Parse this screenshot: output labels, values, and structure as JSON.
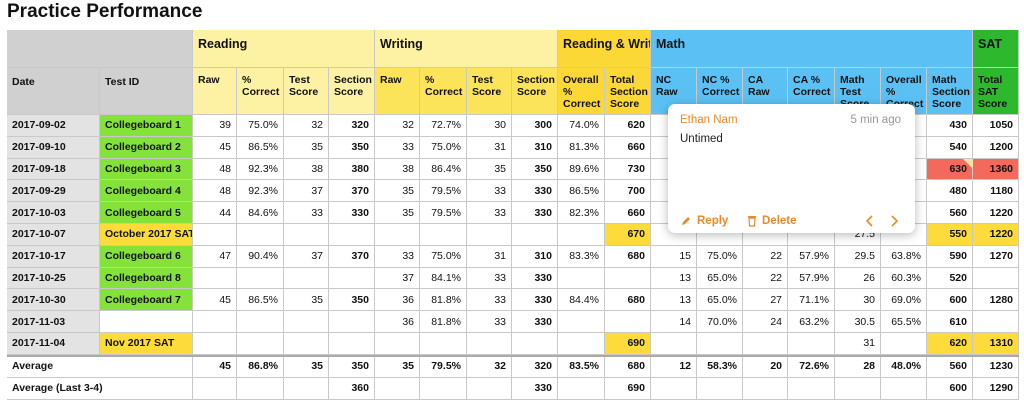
{
  "title": "Practice Performance",
  "groups": [
    "Reading",
    "Writing",
    "Reading & Writing",
    "Math",
    "SAT"
  ],
  "columns": [
    "Date",
    "Test ID",
    "Raw",
    "% Correct",
    "Test Score",
    "Section Score",
    "Raw",
    "% Correct",
    "Test Score",
    "Section Score",
    "Overall % Correct",
    "Total Section Score",
    "NC Raw",
    "NC % Correct",
    "CA Raw",
    "CA % Correct",
    "Math Test Score",
    "Overall % Correct",
    "Math Section Score",
    "Total SAT Score"
  ],
  "rows": [
    {
      "date": "2017-09-02",
      "test_id": "Collegeboard 1",
      "cells": [
        "39",
        "75.0%",
        "32",
        "320",
        "32",
        "72.7%",
        "30",
        "300",
        "74.0%",
        "620",
        null,
        null,
        null,
        null,
        null,
        null,
        "430",
        "1050"
      ]
    },
    {
      "date": "2017-09-10",
      "test_id": "Collegeboard 2",
      "cells": [
        "45",
        "86.5%",
        "35",
        "350",
        "33",
        "75.0%",
        "31",
        "310",
        "81.3%",
        "660",
        null,
        null,
        null,
        null,
        null,
        null,
        "540",
        "1200"
      ]
    },
    {
      "date": "2017-09-18",
      "test_id": "Collegeboard 3",
      "cells": [
        "48",
        "92.3%",
        "38",
        "380",
        "38",
        "86.4%",
        "35",
        "350",
        "89.6%",
        "730",
        null,
        null,
        null,
        null,
        null,
        null,
        "630",
        "1360"
      ]
    },
    {
      "date": "2017-09-29",
      "test_id": "Collegeboard 4",
      "cells": [
        "48",
        "92.3%",
        "37",
        "370",
        "35",
        "79.5%",
        "33",
        "330",
        "86.5%",
        "700",
        null,
        null,
        null,
        null,
        null,
        null,
        "480",
        "1180"
      ]
    },
    {
      "date": "2017-10-03",
      "test_id": "Collegeboard 5",
      "cells": [
        "44",
        "84.6%",
        "33",
        "330",
        "35",
        "79.5%",
        "33",
        "330",
        "82.3%",
        "660",
        null,
        null,
        null,
        null,
        null,
        null,
        "560",
        "1220"
      ]
    },
    {
      "date": "2017-10-07",
      "test_id": "October 2017 SAT",
      "cells": [
        null,
        null,
        null,
        null,
        null,
        null,
        null,
        null,
        null,
        "670",
        null,
        null,
        null,
        null,
        "27.5",
        null,
        "550",
        "1220"
      ]
    },
    {
      "date": "2017-10-17",
      "test_id": "Collegeboard 6",
      "cells": [
        "47",
        "90.4%",
        "37",
        "370",
        "33",
        "75.0%",
        "31",
        "310",
        "83.3%",
        "680",
        "15",
        "75.0%",
        "22",
        "57.9%",
        "29.5",
        "63.8%",
        "590",
        "1270"
      ]
    },
    {
      "date": "2017-10-25",
      "test_id": "Collegeboard 8",
      "cells": [
        null,
        null,
        null,
        null,
        "37",
        "84.1%",
        "33",
        "330",
        null,
        null,
        "13",
        "65.0%",
        "22",
        "57.9%",
        "26",
        "60.3%",
        "520",
        null
      ]
    },
    {
      "date": "2017-10-30",
      "test_id": "Collegeboard 7",
      "cells": [
        "45",
        "86.5%",
        "35",
        "350",
        "36",
        "81.8%",
        "33",
        "330",
        "84.4%",
        "680",
        "13",
        "65.0%",
        "27",
        "71.1%",
        "30",
        "69.0%",
        "600",
        "1280"
      ]
    },
    {
      "date": "2017-11-03",
      "test_id": null,
      "cells": [
        null,
        null,
        null,
        null,
        "36",
        "81.8%",
        "33",
        "330",
        null,
        null,
        "14",
        "70.0%",
        "24",
        "63.2%",
        "30.5",
        "65.5%",
        "610",
        null
      ]
    },
    {
      "date": "2017-11-04",
      "test_id": "Nov 2017 SAT",
      "cells": [
        null,
        null,
        null,
        null,
        null,
        null,
        null,
        null,
        null,
        "690",
        null,
        null,
        null,
        null,
        "31",
        null,
        "620",
        "1310"
      ]
    }
  ],
  "averages": [
    {
      "date": "Average",
      "cells": [
        "45",
        "86.8%",
        "35",
        "350",
        "35",
        "79.5%",
        "32",
        "320",
        "83.5%",
        "680",
        "12",
        "58.3%",
        "20",
        "72.6%",
        "28",
        "48.0%",
        "560",
        "1230"
      ]
    },
    {
      "date": "Average (Last 3-4)",
      "cells": [
        null,
        null,
        null,
        "360",
        null,
        null,
        null,
        "330",
        null,
        "690",
        null,
        null,
        null,
        null,
        null,
        null,
        "600",
        "1290"
      ]
    }
  ],
  "comment": {
    "author": "Ethan Nam",
    "time": "5 min ago",
    "text": "Untimed",
    "actions": [
      "Reply",
      "Delete"
    ]
  }
}
